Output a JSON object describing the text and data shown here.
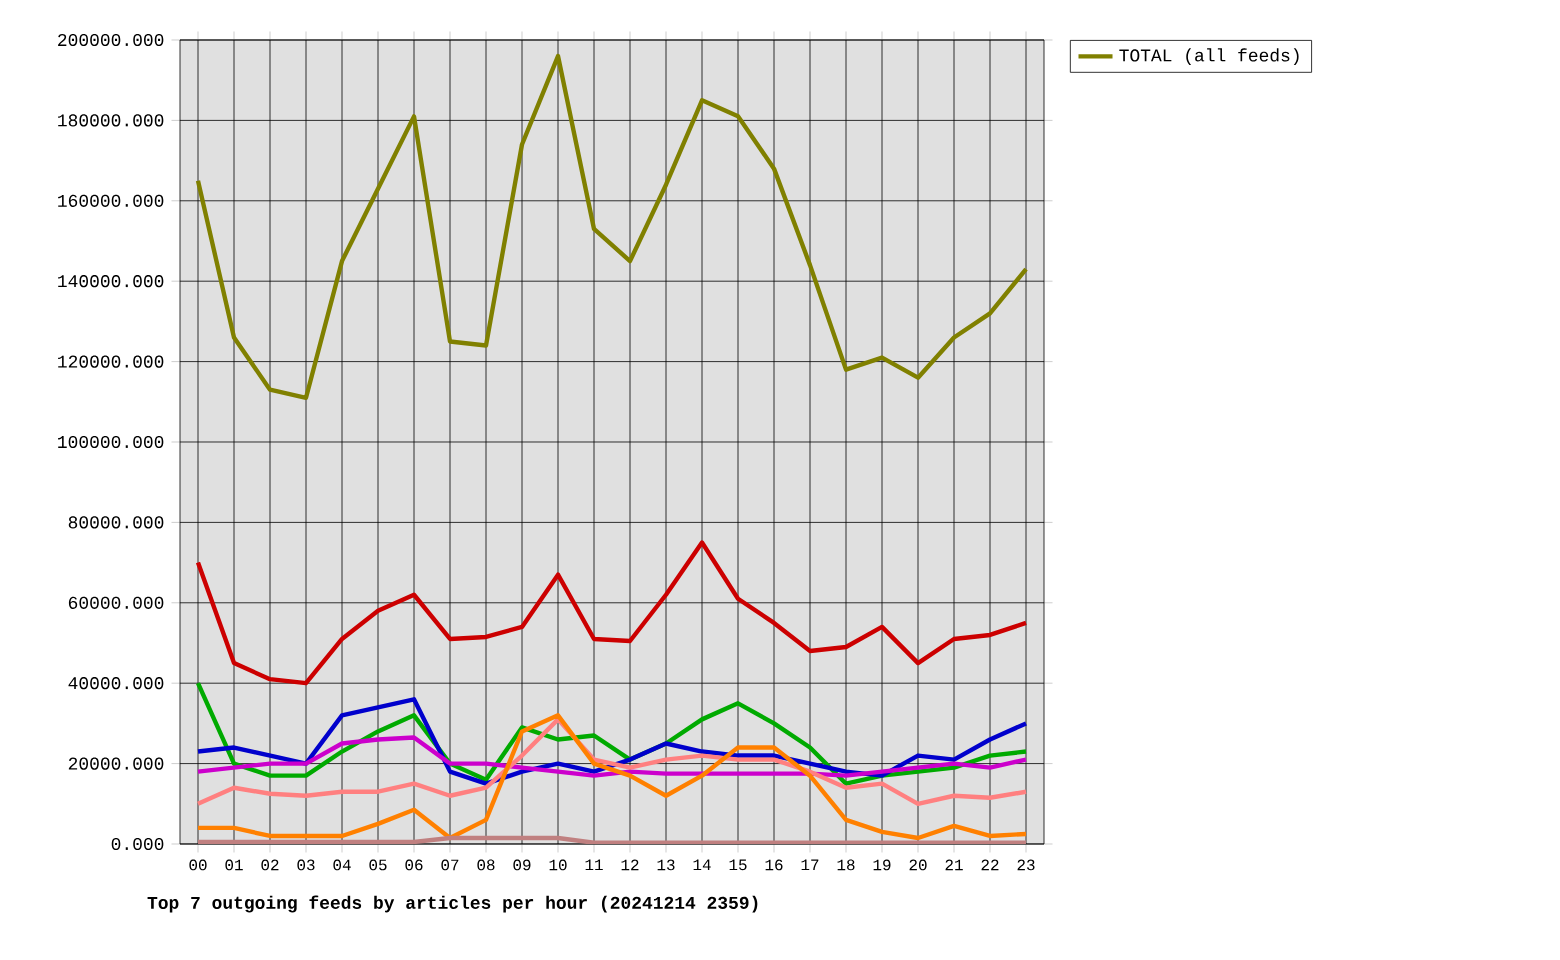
{
  "chart_data": {
    "type": "line",
    "title": "Top 7 outgoing feeds by articles per hour (20241214 2359)",
    "categories": [
      "00",
      "01",
      "02",
      "03",
      "04",
      "05",
      "06",
      "07",
      "08",
      "09",
      "10",
      "11",
      "12",
      "13",
      "14",
      "15",
      "16",
      "17",
      "18",
      "19",
      "20",
      "21",
      "22",
      "23"
    ],
    "series": [
      {
        "color": "#cc0000",
        "values": [
          70000,
          45000,
          41000,
          40000,
          51000,
          58000,
          62000,
          51000,
          51500,
          54000,
          67000,
          51000,
          50500,
          62000,
          75000,
          61000,
          55000,
          48000,
          49000,
          54000,
          45000,
          51000,
          52000,
          55000
        ]
      },
      {
        "color": "#00aa00",
        "values": [
          40000,
          20000,
          17000,
          17000,
          23000,
          28000,
          32000,
          20000,
          16000,
          29000,
          26000,
          27000,
          21000,
          25000,
          31000,
          35000,
          30000,
          24000,
          15000,
          17000,
          18000,
          19000,
          22000,
          23000
        ]
      },
      {
        "color": "#0000cc",
        "values": [
          23000,
          24000,
          22000,
          20000,
          32000,
          34000,
          36000,
          18000,
          15000,
          18000,
          20000,
          18000,
          21000,
          25000,
          23000,
          22000,
          22000,
          20000,
          18000,
          17000,
          22000,
          21000,
          26000,
          30000
        ]
      },
      {
        "color": "#cc00cc",
        "values": [
          18000,
          19000,
          20000,
          20000,
          25000,
          26000,
          26500,
          20000,
          20000,
          19000,
          18000,
          17000,
          18000,
          17500,
          17500,
          17500,
          17500,
          17500,
          17000,
          18000,
          19000,
          20000,
          19000,
          21000
        ]
      },
      {
        "color": "#ff8080",
        "values": [
          10000,
          14000,
          12500,
          12000,
          13000,
          13000,
          15000,
          12000,
          14000,
          22000,
          31000,
          21000,
          19000,
          21000,
          22000,
          21000,
          21000,
          18000,
          14000,
          15000,
          10000,
          12000,
          11500,
          13000
        ]
      },
      {
        "color": "#ff8000",
        "values": [
          4000,
          4000,
          2000,
          2000,
          2000,
          5000,
          8500,
          1500,
          6000,
          28000,
          32000,
          20000,
          17000,
          12000,
          17000,
          24000,
          24000,
          17000,
          6000,
          3000,
          1500,
          4500,
          2000,
          2500
        ]
      },
      {
        "color": "#c08080",
        "values": [
          500,
          500,
          500,
          500,
          500,
          500,
          500,
          1500,
          1500,
          1500,
          1500,
          300,
          300,
          300,
          300,
          300,
          300,
          300,
          300,
          300,
          300,
          300,
          300,
          300
        ]
      },
      {
        "name": "TOTAL (all feeds)",
        "color": "#808000",
        "values": [
          165000,
          126000,
          113000,
          111000,
          145000,
          163000,
          181000,
          125000,
          124000,
          174000,
          196000,
          153000,
          145000,
          164000,
          185000,
          181000,
          168000,
          144000,
          118000,
          121000,
          116000,
          126000,
          132000,
          143000
        ]
      }
    ],
    "ylim": [
      0,
      200000
    ],
    "yticks": [
      {
        "value": 0,
        "label": "0.000"
      },
      {
        "value": 20000,
        "label": "20000.000"
      },
      {
        "value": 40000,
        "label": "40000.000"
      },
      {
        "value": 60000,
        "label": "60000.000"
      },
      {
        "value": 80000,
        "label": "80000.000"
      },
      {
        "value": 100000,
        "label": "100000.000"
      },
      {
        "value": 120000,
        "label": "120000.000"
      },
      {
        "value": 140000,
        "label": "140000.000"
      },
      {
        "value": 160000,
        "label": "160000.000"
      },
      {
        "value": 180000,
        "label": "180000.000"
      },
      {
        "value": 200000,
        "label": "200000.000"
      }
    ],
    "grid": true,
    "legend": "top right"
  }
}
